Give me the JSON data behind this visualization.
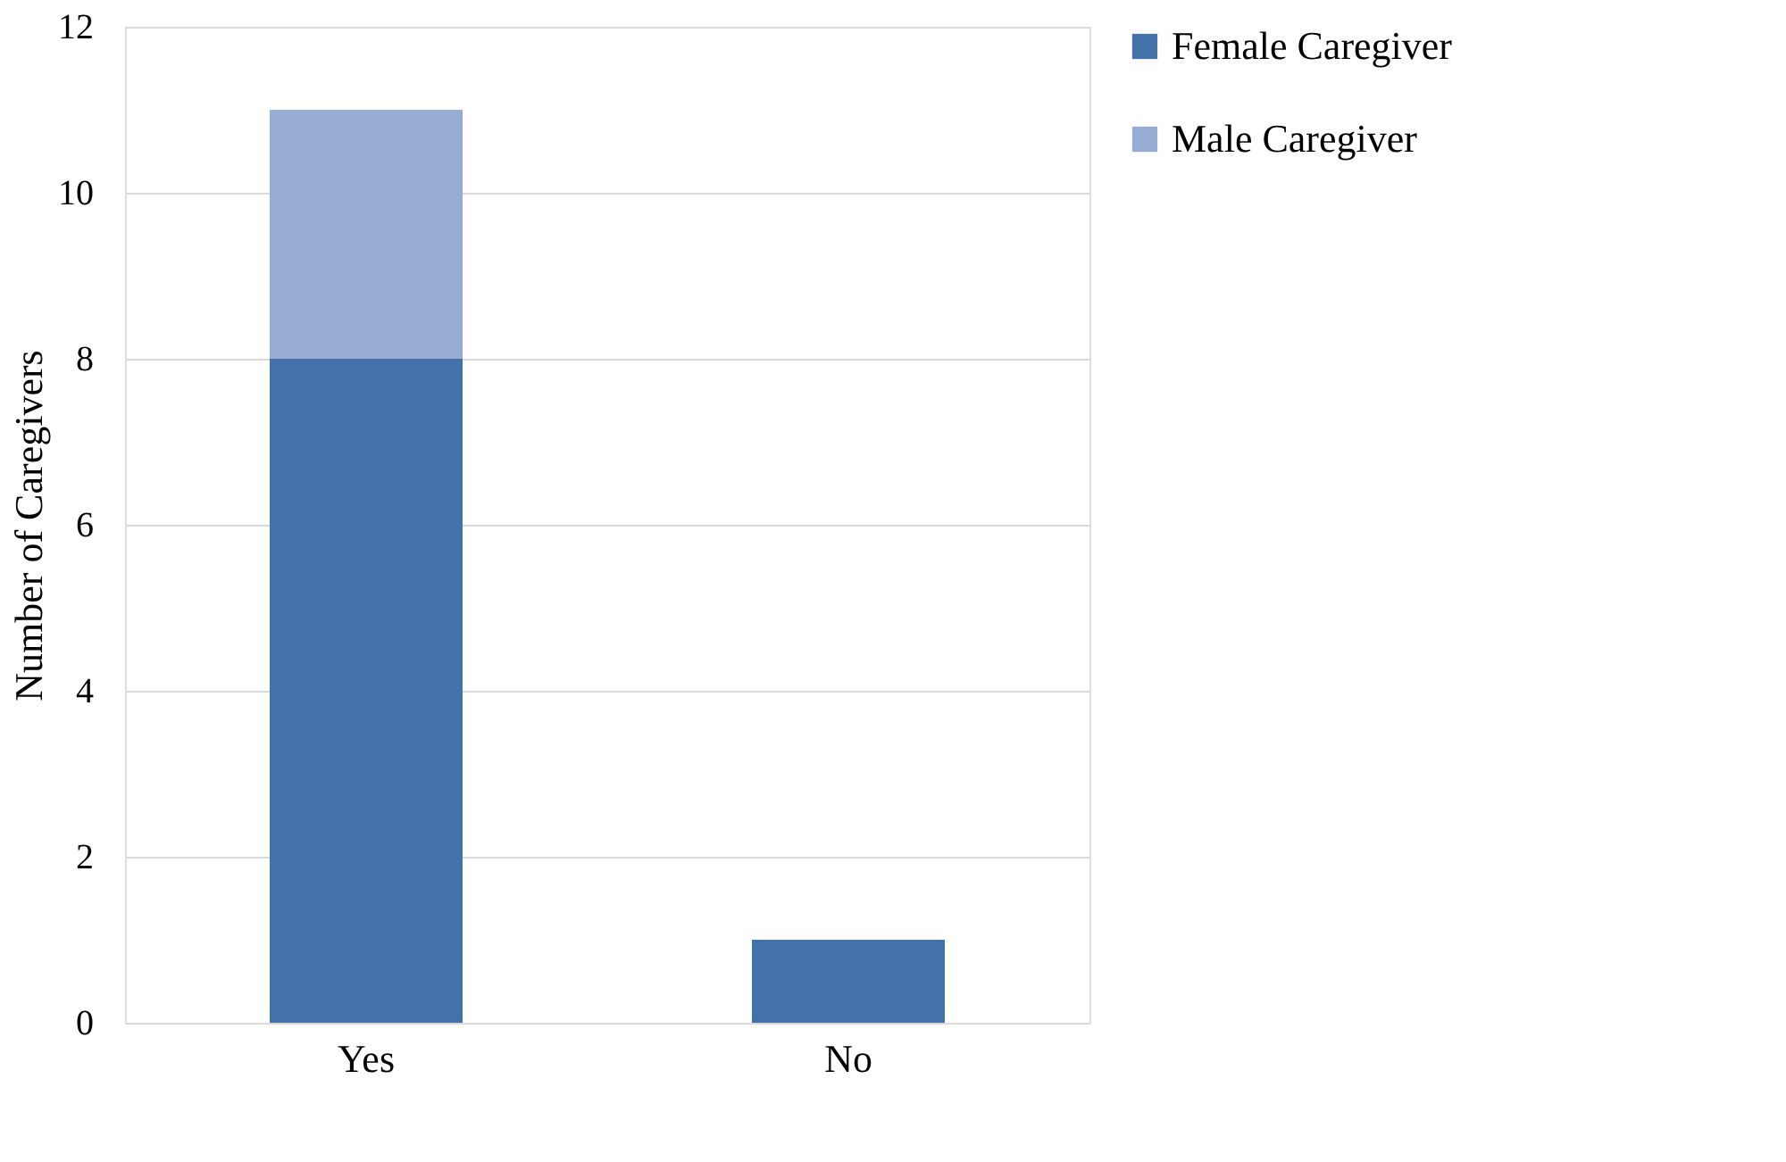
{
  "chart_data": {
    "type": "bar",
    "ylabel": "Number of Caregivers",
    "categories": [
      "Yes",
      "No"
    ],
    "series": [
      {
        "name": "Female Caregiver",
        "color": "#4472a8",
        "values": [
          8,
          1
        ]
      },
      {
        "name": "Male Caregiver",
        "color": "#97acd3",
        "values": [
          3,
          null
        ]
      }
    ],
    "stacked": true,
    "ylim": [
      0,
      12
    ],
    "yticks": [
      0,
      2,
      4,
      6,
      8,
      10,
      12
    ],
    "grid": "y",
    "legend": "right"
  }
}
